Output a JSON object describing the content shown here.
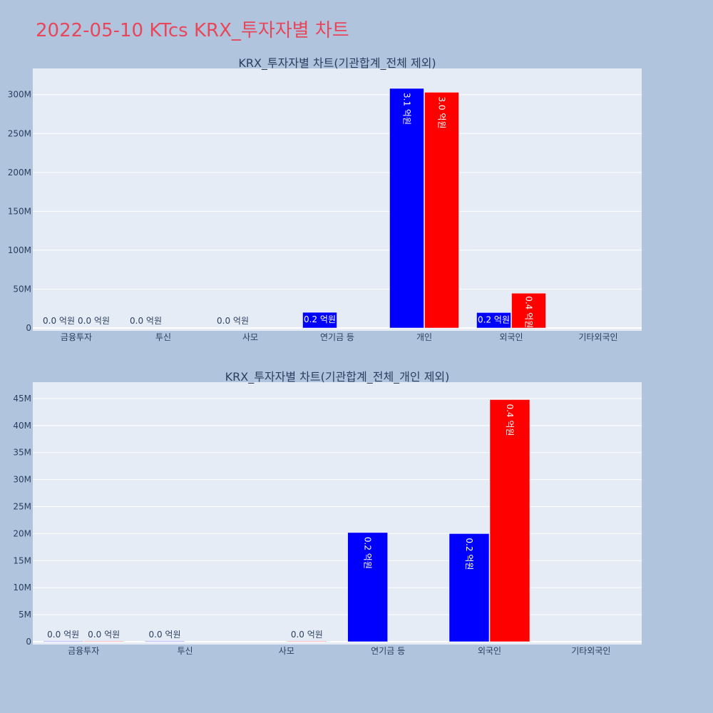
{
  "page": {
    "title": "2022-05-10 KTcs KRX_투자자별 차트"
  },
  "colors": {
    "page_bg": "#b0c4de",
    "plot_bg": "#e5ecf6",
    "series_a": "#0000ff",
    "series_b": "#ff0000",
    "text": "#2a3f5f",
    "title": "#e8465a"
  },
  "chart_data": [
    {
      "type": "bar",
      "title": "KRX_투자자별 차트(기관합계_전체 제외)",
      "categories": [
        "금융투자",
        "투신",
        "사모",
        "연기금 등",
        "개인",
        "외국인",
        "기타외국인"
      ],
      "ylim": [
        0,
        330000000
      ],
      "y_ticks": [
        0,
        50000000,
        100000000,
        150000000,
        200000000,
        250000000,
        300000000
      ],
      "y_tick_labels": [
        "0",
        "50M",
        "100M",
        "150M",
        "200M",
        "250M",
        "300M"
      ],
      "grid": true,
      "series": [
        {
          "color": "#0000ff",
          "values": [
            100000,
            50000,
            100000,
            20100000,
            308000000,
            19800000,
            0
          ],
          "labels": [
            "0.0 억원",
            "0.0 억원",
            "0.0 억원",
            "0.2 억원",
            "3.1 억원",
            "0.2 억원",
            ""
          ]
        },
        {
          "color": "#ff0000",
          "values": [
            100000,
            0,
            0,
            0,
            303000000,
            44700000,
            0
          ],
          "labels": [
            "0.0 억원",
            "",
            "",
            "",
            "3.0 억원",
            "0.4 억원",
            ""
          ]
        }
      ]
    },
    {
      "type": "bar",
      "title": "KRX_투자자별 차트(기관합계_전체_개인 제외)",
      "categories": [
        "금융투자",
        "투신",
        "사모",
        "연기금 등",
        "외국인",
        "기타외국인"
      ],
      "ylim": [
        0,
        47500000
      ],
      "y_ticks": [
        0,
        5000000,
        10000000,
        15000000,
        20000000,
        25000000,
        30000000,
        35000000,
        40000000,
        45000000
      ],
      "y_tick_labels": [
        "0",
        "5M",
        "10M",
        "15M",
        "20M",
        "25M",
        "30M",
        "35M",
        "40M",
        "45M"
      ],
      "grid": true,
      "series": [
        {
          "color": "#0000ff",
          "values": [
            100000,
            100000,
            0,
            20200000,
            20000000,
            0
          ],
          "labels": [
            "0.0 억원",
            "0.0 억원",
            "",
            "0.2 억원",
            "0.2 억원",
            ""
          ]
        },
        {
          "color": "#ff0000",
          "values": [
            100000,
            0,
            100000,
            0,
            44800000,
            0
          ],
          "labels": [
            "0.0 억원",
            "",
            "0.0 억원",
            "",
            "0.4 억원",
            ""
          ]
        }
      ]
    }
  ]
}
